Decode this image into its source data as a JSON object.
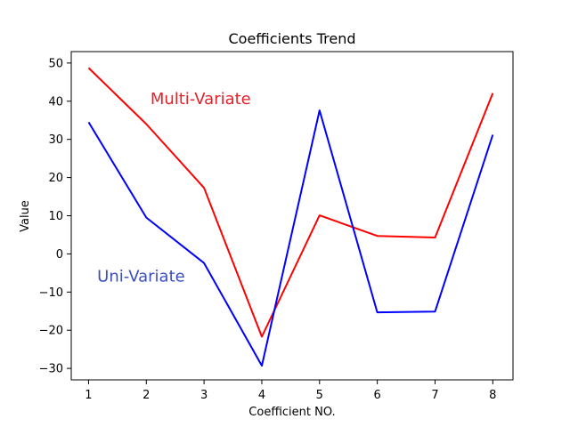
{
  "chart_data": {
    "type": "line",
    "title": "Coefficients Trend",
    "xlabel": "Coefficient NO.",
    "ylabel": "Value",
    "x": [
      1,
      2,
      3,
      4,
      5,
      6,
      7,
      8
    ],
    "xlim": [
      0.7,
      8.35
    ],
    "ylim": [
      -33,
      53
    ],
    "yticks": [
      -30,
      -20,
      -10,
      0,
      10,
      20,
      30,
      40,
      50
    ],
    "grid": false,
    "series": [
      {
        "name": "Multi-Variate",
        "color": "#ff0000",
        "values": [
          48.7,
          34.0,
          17.3,
          -21.7,
          10.1,
          4.7,
          4.3,
          42.1
        ]
      },
      {
        "name": "Uni-Variate",
        "color": "#0000ff",
        "values": [
          34.5,
          9.5,
          -2.4,
          -29.3,
          37.6,
          -15.3,
          -15.1,
          31.2
        ]
      }
    ],
    "annotations": [
      {
        "text": "Multi-Variate",
        "color": "#e8202a",
        "x": 2.07,
        "y": 39.3
      },
      {
        "text": "Uni-Variate",
        "color": "#3a4ec2",
        "x": 1.15,
        "y": -7.3
      }
    ]
  }
}
